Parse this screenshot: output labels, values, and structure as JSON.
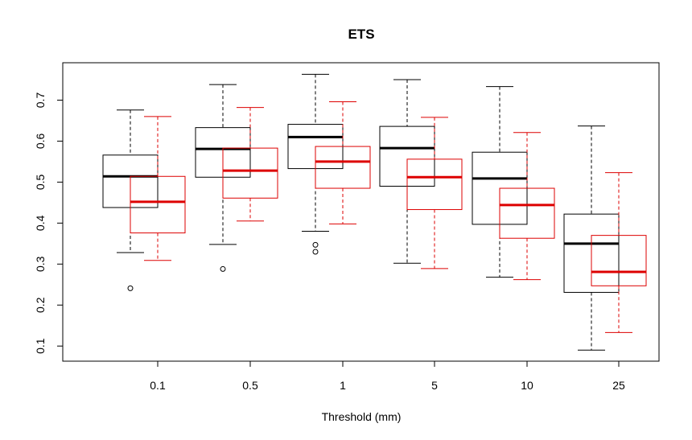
{
  "chart_data": {
    "type": "boxplot",
    "title": "ETS",
    "xlabel": "Threshold (mm)",
    "ylabel": "",
    "categories": [
      "0.1",
      "0.5",
      "1",
      "5",
      "10",
      "25"
    ],
    "ylim": [
      0.05,
      0.77
    ],
    "yticks": [
      0.1,
      0.2,
      0.3,
      0.4,
      0.5,
      0.6,
      0.7
    ],
    "ytick_labels": [
      "0.1",
      "0.2",
      "0.3",
      "0.4",
      "0.5",
      "0.6",
      "0.7"
    ],
    "grid": false,
    "legend": "none",
    "series": [
      {
        "color": "#000000",
        "boxes": [
          {
            "min": 0.328,
            "q1": 0.438,
            "median": 0.514,
            "q3": 0.566,
            "max": 0.676,
            "outliers": [
              0.241
            ]
          },
          {
            "min": 0.348,
            "q1": 0.512,
            "median": 0.581,
            "q3": 0.633,
            "max": 0.738,
            "outliers": [
              0.288
            ]
          },
          {
            "min": 0.38,
            "q1": 0.533,
            "median": 0.61,
            "q3": 0.641,
            "max": 0.763,
            "outliers": [
              0.347,
              0.33
            ]
          },
          {
            "min": 0.302,
            "q1": 0.49,
            "median": 0.583,
            "q3": 0.636,
            "max": 0.75,
            "outliers": []
          },
          {
            "min": 0.268,
            "q1": 0.397,
            "median": 0.509,
            "q3": 0.573,
            "max": 0.733,
            "outliers": []
          },
          {
            "min": 0.09,
            "q1": 0.231,
            "median": 0.35,
            "q3": 0.422,
            "max": 0.637,
            "outliers": []
          }
        ]
      },
      {
        "color": "#dd0000",
        "boxes": [
          {
            "min": 0.309,
            "q1": 0.376,
            "median": 0.452,
            "q3": 0.514,
            "max": 0.66,
            "outliers": []
          },
          {
            "min": 0.405,
            "q1": 0.461,
            "median": 0.528,
            "q3": 0.583,
            "max": 0.682,
            "outliers": []
          },
          {
            "min": 0.398,
            "q1": 0.485,
            "median": 0.55,
            "q3": 0.587,
            "max": 0.696,
            "outliers": []
          },
          {
            "min": 0.289,
            "q1": 0.433,
            "median": 0.512,
            "q3": 0.556,
            "max": 0.658,
            "outliers": []
          },
          {
            "min": 0.262,
            "q1": 0.363,
            "median": 0.444,
            "q3": 0.485,
            "max": 0.621,
            "outliers": []
          },
          {
            "min": 0.133,
            "q1": 0.247,
            "median": 0.281,
            "q3": 0.37,
            "max": 0.523,
            "outliers": []
          }
        ]
      }
    ]
  }
}
